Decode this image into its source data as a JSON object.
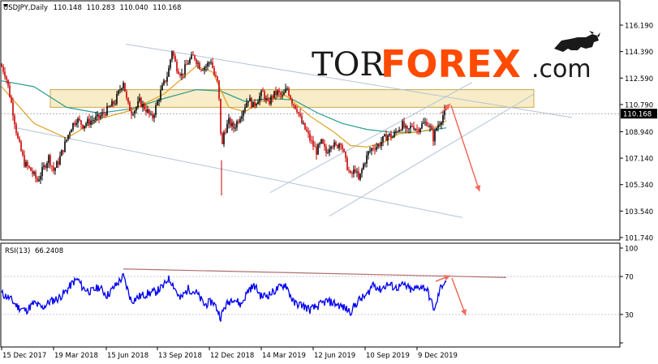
{
  "header": {
    "symbol": "USDJPY,Daily",
    "open": "110.148",
    "high": "110.283",
    "low": "110.040",
    "close": "110.168"
  },
  "rsi_header": {
    "label": "RSI(13)",
    "value": "66.2408"
  },
  "logo": {
    "part1": "TOR",
    "part2": "FOREX",
    "part3": ".com"
  },
  "colors": {
    "bull_candle": "#000000",
    "bear_candle": "#cc0000",
    "ma_fast": "#e0a020",
    "ma_slow": "#2a9d8f",
    "rsi_line": "#0000ee",
    "trendline": "#b0c4d8",
    "arrow": "#f26b5b",
    "zone_fill": "#f5e6b0",
    "logo_orange": "#ff4a00",
    "current_price_bg": "#000000"
  },
  "chart_data": [
    {
      "type": "candlestick",
      "title": "USDJPY,Daily",
      "y_ticks": [
        "116.190",
        "114.390",
        "112.590",
        "110.790",
        "108.940",
        "107.140",
        "105.340",
        "103.540",
        "101.740"
      ],
      "ylim": [
        101.0,
        117.0
      ],
      "current_price": "110.168",
      "x_ticks": [
        "15 Dec 2017",
        "19 Mar 2018",
        "15 Jun 2018",
        "13 Sep 2018",
        "12 Dec 2018",
        "14 Mar 2019",
        "12 Jun 2019",
        "10 Sep 2019",
        "9 Dec 2019"
      ],
      "price_path": [
        [
          0,
          113.4
        ],
        [
          5,
          112.8
        ],
        [
          12,
          110.9
        ],
        [
          20,
          108.4
        ],
        [
          28,
          106.8
        ],
        [
          36,
          106.3
        ],
        [
          44,
          105.6
        ],
        [
          52,
          106.5
        ],
        [
          58,
          107.2
        ],
        [
          64,
          106.3
        ],
        [
          70,
          106.9
        ],
        [
          78,
          108.1
        ],
        [
          85,
          109.2
        ],
        [
          92,
          109.8
        ],
        [
          100,
          109.4
        ],
        [
          110,
          109.7
        ],
        [
          120,
          109.9
        ],
        [
          130,
          110.4
        ],
        [
          140,
          111.0
        ],
        [
          150,
          112.4
        ],
        [
          155,
          110.8
        ],
        [
          160,
          110.3
        ],
        [
          165,
          110.5
        ],
        [
          170,
          111.0
        ],
        [
          180,
          110.3
        ],
        [
          185,
          109.8
        ],
        [
          190,
          110.6
        ],
        [
          197,
          111.8
        ],
        [
          205,
          112.9
        ],
        [
          210,
          114.5
        ],
        [
          215,
          113.4
        ],
        [
          222,
          112.8
        ],
        [
          230,
          113.7
        ],
        [
          237,
          114.1
        ],
        [
          245,
          113.3
        ],
        [
          252,
          113.4
        ],
        [
          258,
          113.8
        ],
        [
          262,
          112.8
        ],
        [
          266,
          112.3
        ],
        [
          269,
          110.4
        ],
        [
          271,
          107.5
        ],
        [
          274,
          108.9
        ],
        [
          280,
          109.6
        ],
        [
          286,
          109.2
        ],
        [
          292,
          109.8
        ],
        [
          298,
          110.5
        ],
        [
          304,
          111.2
        ],
        [
          310,
          110.7
        ],
        [
          316,
          111.2
        ],
        [
          322,
          111.6
        ],
        [
          328,
          110.8
        ],
        [
          334,
          111.4
        ],
        [
          340,
          111.6
        ],
        [
          346,
          111.3
        ],
        [
          352,
          111.9
        ],
        [
          358,
          111.0
        ],
        [
          364,
          110.5
        ],
        [
          370,
          109.5
        ],
        [
          376,
          108.9
        ],
        [
          382,
          108.2
        ],
        [
          388,
          107.6
        ],
        [
          394,
          108.2
        ],
        [
          400,
          107.5
        ],
        [
          406,
          108.2
        ],
        [
          412,
          107.9
        ],
        [
          418,
          108.3
        ],
        [
          424,
          106.9
        ],
        [
          430,
          105.9
        ],
        [
          436,
          106.4
        ],
        [
          440,
          105.6
        ],
        [
          446,
          106.7
        ],
        [
          452,
          107.5
        ],
        [
          458,
          107.9
        ],
        [
          464,
          108.0
        ],
        [
          470,
          108.4
        ],
        [
          476,
          108.7
        ],
        [
          482,
          108.6
        ],
        [
          488,
          109.1
        ],
        [
          494,
          109.4
        ],
        [
          500,
          108.9
        ],
        [
          506,
          109.4
        ],
        [
          512,
          109.1
        ],
        [
          518,
          109.4
        ],
        [
          524,
          109.6
        ],
        [
          528,
          109.2
        ],
        [
          532,
          108.5
        ],
        [
          536,
          109.2
        ],
        [
          540,
          109.6
        ],
        [
          545,
          110.2
        ],
        [
          548,
          110.3
        ]
      ],
      "rsi_path": [
        [
          0,
          52
        ],
        [
          10,
          47
        ],
        [
          20,
          38
        ],
        [
          30,
          34
        ],
        [
          40,
          42
        ],
        [
          50,
          37
        ],
        [
          60,
          44
        ],
        [
          70,
          47
        ],
        [
          80,
          55
        ],
        [
          88,
          64
        ],
        [
          94,
          67
        ],
        [
          100,
          58
        ],
        [
          110,
          54
        ],
        [
          120,
          59
        ],
        [
          130,
          50
        ],
        [
          140,
          60
        ],
        [
          150,
          70
        ],
        [
          160,
          44
        ],
        [
          170,
          49
        ],
        [
          180,
          52
        ],
        [
          190,
          54
        ],
        [
          200,
          60
        ],
        [
          205,
          68
        ],
        [
          210,
          64
        ],
        [
          220,
          46
        ],
        [
          230,
          57
        ],
        [
          240,
          53
        ],
        [
          250,
          40
        ],
        [
          260,
          44
        ],
        [
          266,
          35
        ],
        [
          270,
          27
        ],
        [
          275,
          38
        ],
        [
          285,
          48
        ],
        [
          295,
          40
        ],
        [
          305,
          57
        ],
        [
          312,
          60
        ],
        [
          320,
          49
        ],
        [
          330,
          51
        ],
        [
          340,
          57
        ],
        [
          350,
          62
        ],
        [
          360,
          42
        ],
        [
          370,
          40
        ],
        [
          380,
          35
        ],
        [
          390,
          39
        ],
        [
          400,
          44
        ],
        [
          410,
          42
        ],
        [
          420,
          38
        ],
        [
          430,
          33
        ],
        [
          440,
          45
        ],
        [
          450,
          50
        ],
        [
          458,
          63
        ],
        [
          466,
          56
        ],
        [
          476,
          62
        ],
        [
          486,
          58
        ],
        [
          496,
          61
        ],
        [
          506,
          55
        ],
        [
          516,
          60
        ],
        [
          524,
          57
        ],
        [
          530,
          42
        ],
        [
          534,
          34
        ],
        [
          540,
          56
        ],
        [
          545,
          64
        ],
        [
          548,
          66
        ]
      ],
      "ma_fast_path": [
        [
          0,
          112.0
        ],
        [
          40,
          109.5
        ],
        [
          80,
          108.5
        ],
        [
          120,
          109.8
        ],
        [
          160,
          110.4
        ],
        [
          200,
          111.5
        ],
        [
          240,
          113.4
        ],
        [
          260,
          113.0
        ],
        [
          280,
          110.6
        ],
        [
          300,
          110.3
        ],
        [
          320,
          111.0
        ],
        [
          350,
          111.4
        ],
        [
          380,
          110.0
        ],
        [
          410,
          108.9
        ],
        [
          430,
          108.0
        ],
        [
          450,
          107.9
        ],
        [
          470,
          108.2
        ],
        [
          490,
          108.8
        ],
        [
          510,
          108.9
        ],
        [
          530,
          109.1
        ],
        [
          548,
          109.7
        ]
      ],
      "ma_slow_path": [
        [
          0,
          112.4
        ],
        [
          40,
          112.0
        ],
        [
          80,
          110.6
        ],
        [
          120,
          110.2
        ],
        [
          160,
          110.5
        ],
        [
          200,
          111.2
        ],
        [
          240,
          111.8
        ],
        [
          270,
          111.7
        ],
        [
          300,
          111.0
        ],
        [
          330,
          111.2
        ],
        [
          360,
          111.1
        ],
        [
          390,
          110.2
        ],
        [
          420,
          109.5
        ],
        [
          450,
          109.1
        ],
        [
          480,
          108.9
        ],
        [
          510,
          108.9
        ],
        [
          548,
          109.2
        ]
      ],
      "resistance_zone": [
        110.6,
        111.8
      ],
      "rsi_ticks": [
        "100",
        "70",
        "30",
        "0"
      ],
      "rsi_levels": [
        70,
        30
      ],
      "rsi_ylim": [
        0,
        100
      ]
    }
  ]
}
